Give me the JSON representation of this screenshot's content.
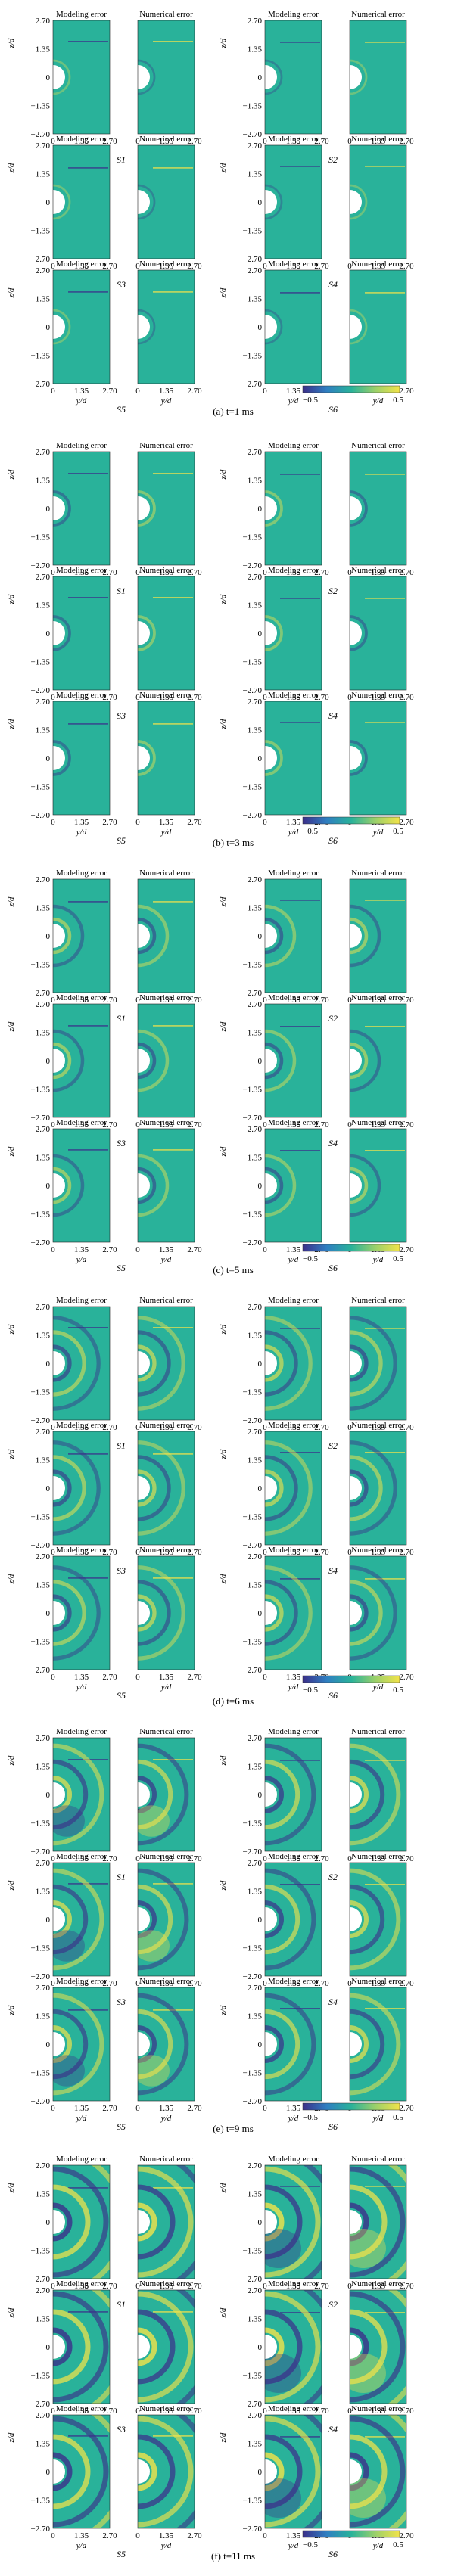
{
  "figure": {
    "panel_titles": [
      "Modeling error",
      "Numerical error"
    ],
    "y_ticks": [
      "2.70",
      "1.35",
      "0",
      "−1.35",
      "−2.70"
    ],
    "x_ticks": [
      "0",
      "1.35",
      "2.70"
    ],
    "y_axis_label": "z/d",
    "x_axis_label": "y/d",
    "colorbar": {
      "min_label": "−0.5",
      "max_label": "0.5",
      "min": -0.5,
      "max": 0.5
    },
    "colors": {
      "background": "#29b29a",
      "negative": "#3b2f8a",
      "positive": "#f2e34a",
      "cylinder": "#ffffff"
    }
  },
  "subfigures": [
    {
      "caption": "(a) t=1 ms",
      "scenarios": [
        "S1",
        "S2",
        "S3",
        "S4",
        "S5",
        "S6"
      ],
      "intensity": 0.15
    },
    {
      "caption": "(b) t=3 ms",
      "scenarios": [
        "S1",
        "S2",
        "S3",
        "S4",
        "S5",
        "S6"
      ],
      "intensity": 0.35
    },
    {
      "caption": "(c) t=5 ms",
      "scenarios": [
        "S1",
        "S2",
        "S3",
        "S4",
        "S5",
        "S6"
      ],
      "intensity": 0.5
    },
    {
      "caption": "(d) t=6 ms",
      "scenarios": [
        "S1",
        "S2",
        "S3",
        "S4",
        "S5",
        "S6"
      ],
      "intensity": 0.65
    },
    {
      "caption": "(e) t=9 ms",
      "scenarios": [
        "S1",
        "S2",
        "S3",
        "S4",
        "S5",
        "S6"
      ],
      "intensity": 0.8
    },
    {
      "caption": "(f) t=11 ms",
      "scenarios": [
        "S1",
        "S2",
        "S3",
        "S4",
        "S5",
        "S6"
      ],
      "intensity": 1.0
    }
  ]
}
